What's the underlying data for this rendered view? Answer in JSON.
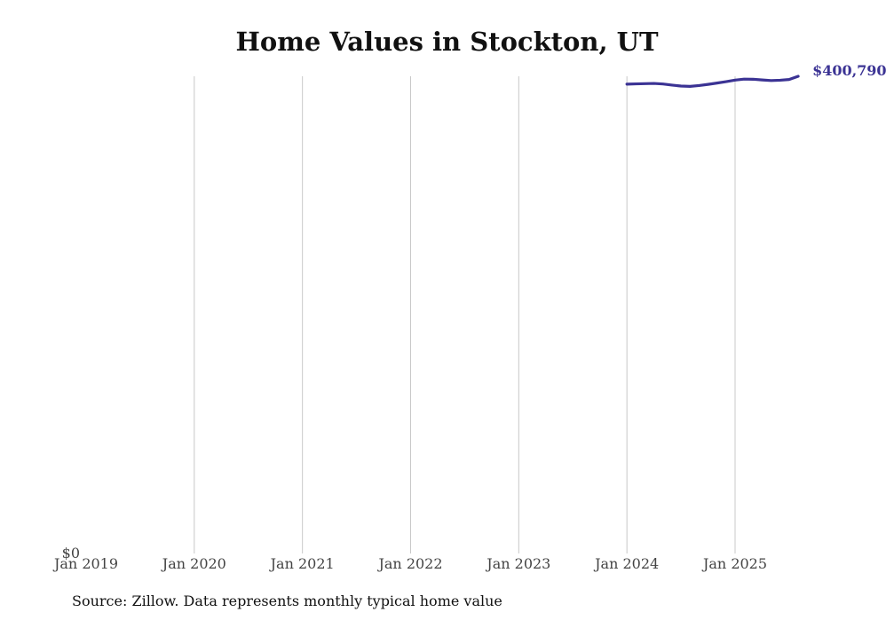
{
  "chart_data": {
    "type": "line",
    "title": "Home Values in Stockton, UT",
    "xlabel": "",
    "ylabel": "",
    "ylim": [
      0,
      400790
    ],
    "x_ticks": [
      "Jan 2019",
      "Jan 2020",
      "Jan 2021",
      "Jan 2022",
      "Jan 2023",
      "Jan 2024",
      "Jan 2025"
    ],
    "y_ticks": [
      {
        "value": 0,
        "label": "$0"
      }
    ],
    "grid": "vertical",
    "line_color": "#3b3394",
    "series": [
      {
        "x": [
          "2024-01",
          "2024-02",
          "2024-03",
          "2024-04",
          "2024-05",
          "2024-06",
          "2024-07",
          "2024-08",
          "2024-09",
          "2024-10",
          "2024-11",
          "2024-12",
          "2025-01",
          "2025-02",
          "2025-03",
          "2025-04",
          "2025-05",
          "2025-06",
          "2025-07",
          "2025-08"
        ],
        "values": [
          394200,
          394400,
          394600,
          394800,
          394300,
          393400,
          392600,
          392300,
          393000,
          394000,
          395100,
          396300,
          397600,
          398400,
          398300,
          397700,
          397200,
          397500,
          398100,
          400790
        ]
      }
    ],
    "end_label": "$400,790"
  },
  "source_note": "Source: Zillow. Data represents monthly typical home value"
}
